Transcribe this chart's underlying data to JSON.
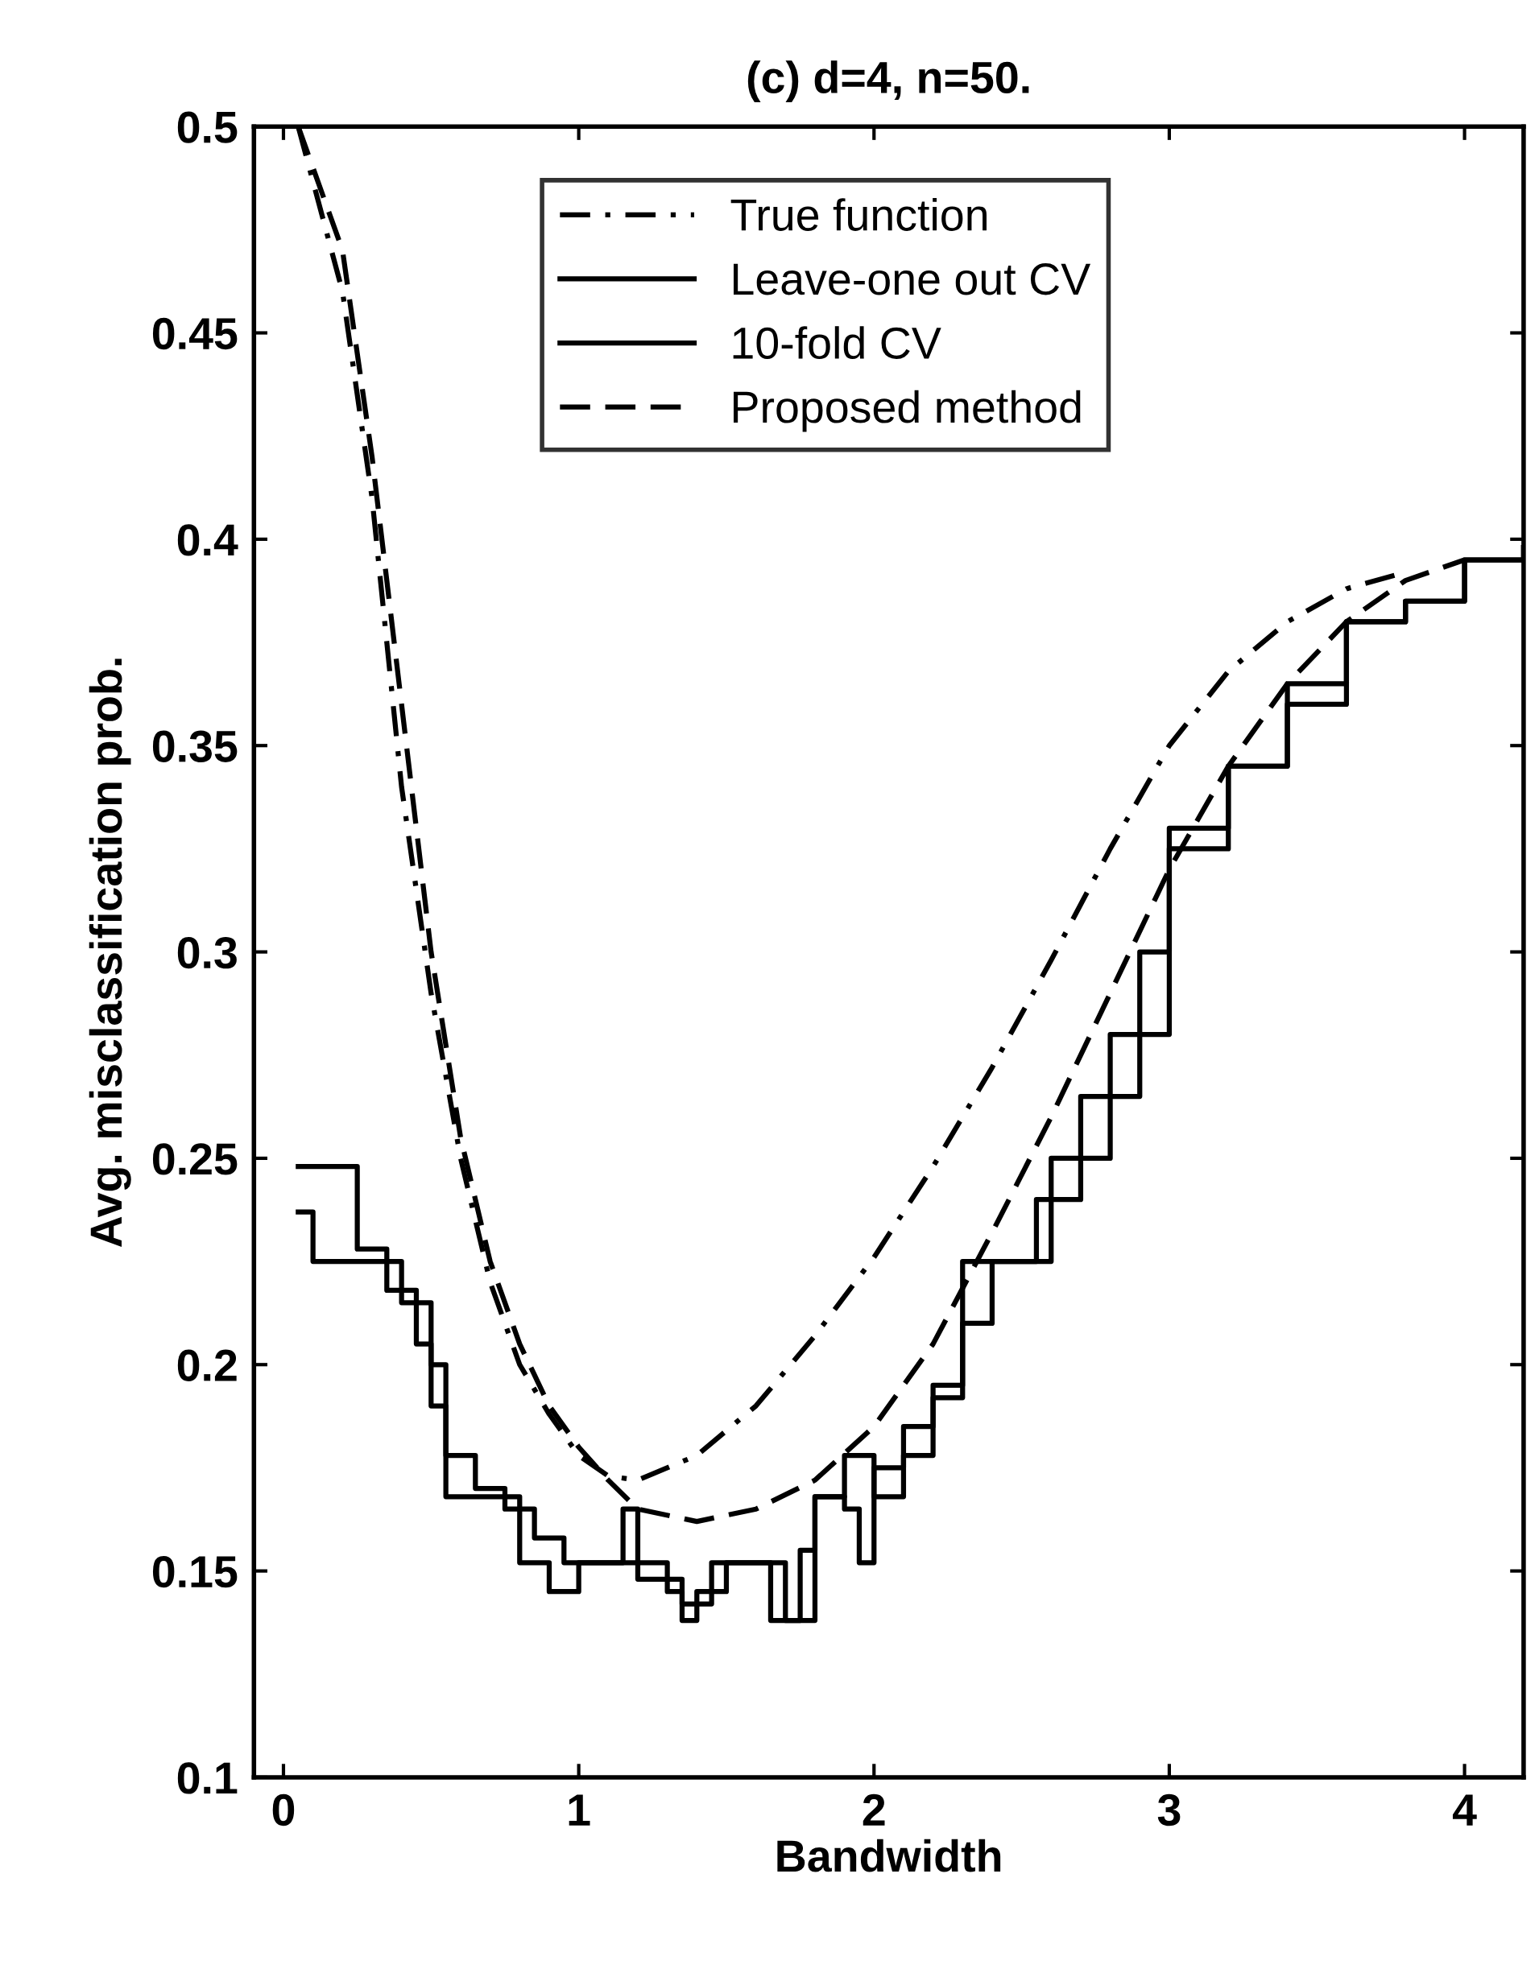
{
  "chart_data": {
    "type": "line",
    "title": "(c) d=4, n=50.",
    "xlabel": "Bandwidth",
    "ylabel": "Avg. misclassification prob.",
    "xlim": [
      -0.1,
      4.2
    ],
    "ylim": [
      0.1,
      0.5
    ],
    "xticks": [
      0,
      1,
      2,
      3,
      4
    ],
    "yticks": [
      0.1,
      0.15,
      0.2,
      0.25,
      0.3,
      0.35,
      0.4,
      0.45,
      0.5
    ],
    "grid": false,
    "legend": "top",
    "marker": "none",
    "series": [
      {
        "name": "True function",
        "color": "#000000",
        "line_style": "dashdot",
        "x": [
          0.05,
          0.2,
          0.3,
          0.4,
          0.5,
          0.6,
          0.7,
          0.8,
          0.9,
          1.0,
          1.1,
          1.2,
          1.4,
          1.6,
          1.8,
          2.0,
          2.2,
          2.4,
          2.6,
          2.8,
          3.0,
          3.2,
          3.4,
          3.6,
          3.8
        ],
        "values": [
          0.5,
          0.46,
          0.41,
          0.34,
          0.29,
          0.25,
          0.22,
          0.2,
          0.188,
          0.178,
          0.173,
          0.172,
          0.178,
          0.19,
          0.207,
          0.226,
          0.248,
          0.272,
          0.298,
          0.325,
          0.35,
          0.368,
          0.38,
          0.388,
          0.392
        ]
      },
      {
        "name": "Leave-one out CV",
        "color": "#000000",
        "type": "step",
        "line_style": "solid",
        "x": [
          0.05,
          0.2,
          0.25,
          0.35,
          0.45,
          0.5,
          0.55,
          0.65,
          0.75,
          0.85,
          0.95,
          1.1,
          1.15,
          1.2,
          1.3,
          1.35,
          1.45,
          1.6,
          1.7,
          1.8,
          1.9,
          1.95,
          2.0,
          2.1,
          2.2,
          2.3,
          2.45,
          2.55,
          2.7,
          2.9,
          3.0,
          3.2,
          3.4,
          3.6,
          3.8,
          4.0,
          4.2
        ],
        "values": [
          0.248,
          0.248,
          0.228,
          0.218,
          0.205,
          0.19,
          0.178,
          0.17,
          0.165,
          0.158,
          0.152,
          0.152,
          0.165,
          0.152,
          0.148,
          0.142,
          0.152,
          0.152,
          0.138,
          0.168,
          0.165,
          0.152,
          0.175,
          0.185,
          0.195,
          0.225,
          0.225,
          0.24,
          0.265,
          0.3,
          0.33,
          0.345,
          0.365,
          0.38,
          0.385,
          0.395,
          0.398
        ]
      },
      {
        "name": "10-fold CV",
        "color": "#000000",
        "type": "step",
        "line_style": "solid",
        "x": [
          0.05,
          0.1,
          0.3,
          0.4,
          0.5,
          0.55,
          0.7,
          0.8,
          0.9,
          1.0,
          1.1,
          1.2,
          1.3,
          1.35,
          1.4,
          1.5,
          1.6,
          1.65,
          1.7,
          1.75,
          1.8,
          1.9,
          2.0,
          2.1,
          2.2,
          2.3,
          2.4,
          2.5,
          2.6,
          2.8,
          3.0,
          3.2,
          3.4,
          3.6,
          3.8,
          4.0,
          4.2
        ],
        "values": [
          0.237,
          0.225,
          0.225,
          0.215,
          0.2,
          0.168,
          0.168,
          0.152,
          0.145,
          0.152,
          0.152,
          0.148,
          0.145,
          0.138,
          0.145,
          0.152,
          0.152,
          0.138,
          0.138,
          0.155,
          0.168,
          0.178,
          0.168,
          0.178,
          0.192,
          0.21,
          0.225,
          0.225,
          0.25,
          0.28,
          0.325,
          0.345,
          0.36,
          0.38,
          0.385,
          0.395,
          0.398
        ]
      },
      {
        "name": "Proposed method",
        "color": "#000000",
        "line_style": "dashed",
        "x": [
          0.05,
          0.2,
          0.3,
          0.4,
          0.5,
          0.6,
          0.7,
          0.8,
          0.9,
          1.0,
          1.1,
          1.2,
          1.4,
          1.6,
          1.8,
          2.0,
          2.2,
          2.4,
          2.6,
          2.8,
          3.0,
          3.2,
          3.4,
          3.6,
          3.8,
          4.0
        ],
        "values": [
          0.5,
          0.47,
          0.42,
          0.36,
          0.3,
          0.255,
          0.225,
          0.205,
          0.19,
          0.18,
          0.172,
          0.165,
          0.162,
          0.165,
          0.172,
          0.185,
          0.205,
          0.232,
          0.26,
          0.29,
          0.32,
          0.345,
          0.365,
          0.38,
          0.39,
          0.395
        ]
      }
    ]
  }
}
